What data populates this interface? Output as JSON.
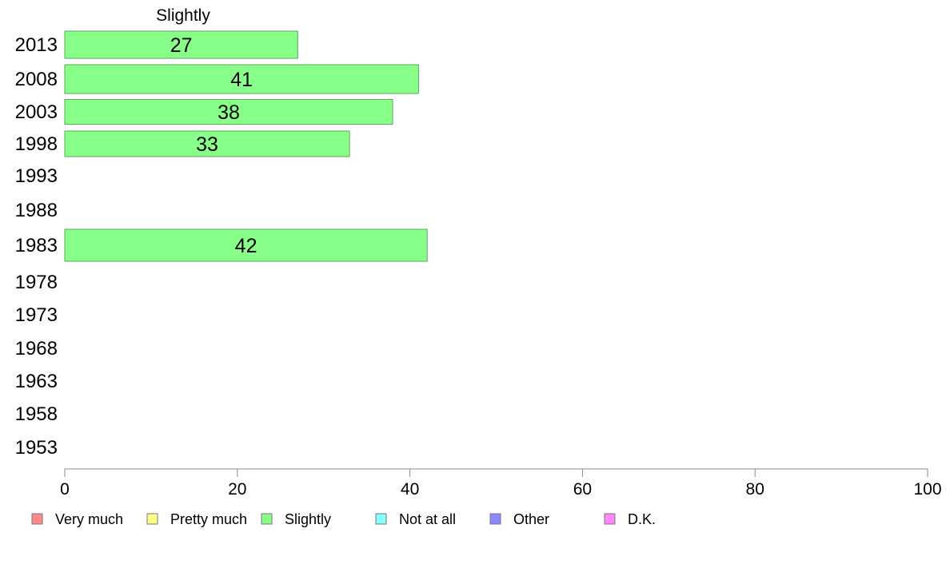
{
  "chart_data": {
    "type": "bar",
    "orientation": "horizontal",
    "header": "Slightly",
    "categories": [
      "2013",
      "2008",
      "2003",
      "1998",
      "1993",
      "1988",
      "1983",
      "1978",
      "1973",
      "1968",
      "1963",
      "1958",
      "1953"
    ],
    "series": [
      {
        "name": "Very much",
        "color": "#ff8a8a",
        "values": [
          null,
          null,
          null,
          null,
          null,
          null,
          null,
          null,
          null,
          null,
          null,
          null,
          null
        ]
      },
      {
        "name": "Pretty much",
        "color": "#ffff88",
        "values": [
          null,
          null,
          null,
          null,
          null,
          null,
          null,
          null,
          null,
          null,
          null,
          null,
          null
        ]
      },
      {
        "name": "Slightly",
        "color": "#88ff88",
        "values": [
          27,
          41,
          38,
          33,
          null,
          null,
          42,
          null,
          null,
          null,
          null,
          null,
          null
        ]
      },
      {
        "name": "Not at all",
        "color": "#88ffff",
        "values": [
          null,
          null,
          null,
          null,
          null,
          null,
          null,
          null,
          null,
          null,
          null,
          null,
          null
        ]
      },
      {
        "name": "Other",
        "color": "#8888ff",
        "values": [
          null,
          null,
          null,
          null,
          null,
          null,
          null,
          null,
          null,
          null,
          null,
          null,
          null
        ]
      },
      {
        "name": "D.K.",
        "color": "#ff88ff",
        "values": [
          null,
          null,
          null,
          null,
          null,
          null,
          null,
          null,
          null,
          null,
          null,
          null,
          null
        ]
      }
    ],
    "xlim": [
      0,
      100
    ],
    "xticks": [
      0,
      20,
      40,
      60,
      80,
      100
    ],
    "xlabel": "",
    "ylabel": "",
    "grid": false,
    "legend_position": "bottom"
  }
}
